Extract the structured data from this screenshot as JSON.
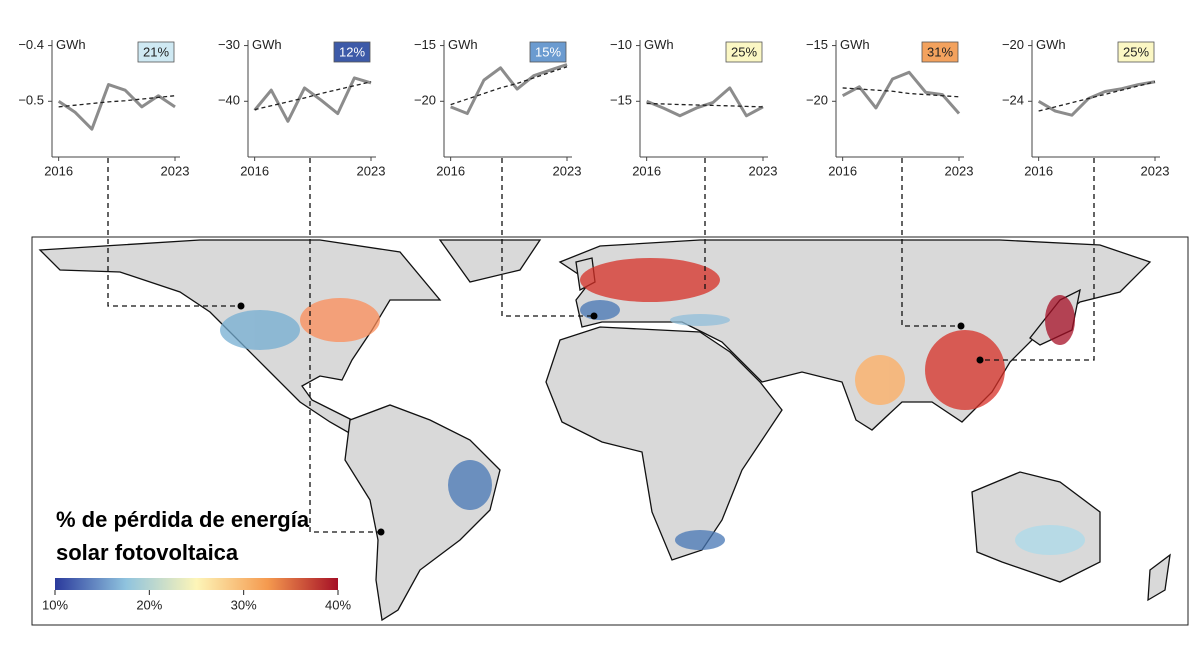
{
  "chart_data": [
    {
      "type": "line",
      "y_label": "GWh",
      "badge": "21%",
      "badge_color": "#cfe9f3",
      "badge_text_color": "#222",
      "x": [
        2016,
        2017,
        2018,
        2019,
        2020,
        2021,
        2022,
        2023
      ],
      "xlim": [
        2015.6,
        2023.3
      ],
      "xticks": [
        2016,
        2023
      ],
      "ylim": [
        -0.6,
        -0.39
      ],
      "yticks": [
        {
          "value": -0.5,
          "label": "−0.5"
        },
        {
          "value": -0.4,
          "label": "−0.4"
        }
      ],
      "series": [
        {
          "color": "#8c8c8c",
          "values": [
            -0.5,
            -0.52,
            -0.55,
            -0.47,
            -0.48,
            -0.51,
            -0.49,
            -0.51
          ]
        },
        {
          "color": "#222222",
          "dash": true,
          "values": [
            -0.51,
            -0.507,
            -0.504,
            -0.501,
            -0.499,
            -0.496,
            -0.493,
            -0.49
          ]
        }
      ]
    },
    {
      "type": "line",
      "y_label": "GWh",
      "badge": "12%",
      "badge_color": "#3d5aa8",
      "badge_text_color": "#fff",
      "x": [
        2016,
        2017,
        2018,
        2019,
        2020,
        2021,
        2022,
        2023
      ],
      "xlim": [
        2015.6,
        2023.3
      ],
      "xticks": [
        2016,
        2023
      ],
      "ylim": [
        -50,
        -29
      ],
      "yticks": [
        {
          "value": -40,
          "label": "−40"
        },
        {
          "value": -30,
          "label": "−30"
        }
      ],
      "series": [
        {
          "color": "#8c8c8c",
          "values": [
            -41.6,
            -38,
            -43.6,
            -37.6,
            -39.8,
            -42.2,
            -35.8,
            -36.7
          ]
        },
        {
          "color": "#222222",
          "dash": true,
          "values": [
            -41.5,
            -40.8,
            -40.1,
            -39.4,
            -38.6,
            -37.9,
            -37.2,
            -36.5
          ]
        }
      ]
    },
    {
      "type": "line",
      "y_label": "GWh",
      "badge": "15%",
      "badge_color": "#6b9bd0",
      "badge_text_color": "#fff",
      "x": [
        2016,
        2017,
        2018,
        2019,
        2020,
        2021,
        2022,
        2023
      ],
      "xlim": [
        2015.6,
        2023.3
      ],
      "xticks": [
        2016,
        2023
      ],
      "ylim": [
        -25,
        -14.5
      ],
      "yticks": [
        {
          "value": -20,
          "label": "−20"
        },
        {
          "value": -15,
          "label": "−15"
        }
      ],
      "series": [
        {
          "color": "#8c8c8c",
          "values": [
            -20.5,
            -21.1,
            -18.1,
            -17,
            -18.9,
            -17.7,
            -17.2,
            -16.7
          ]
        },
        {
          "color": "#222222",
          "dash": true,
          "values": [
            -20.3,
            -19.8,
            -19.3,
            -18.8,
            -18.4,
            -17.9,
            -17.4,
            -16.9
          ]
        }
      ]
    },
    {
      "type": "line",
      "y_label": "GWh",
      "badge": "25%",
      "badge_color": "#fbf7c4",
      "badge_text_color": "#222",
      "x": [
        2016,
        2017,
        2018,
        2019,
        2020,
        2021,
        2022,
        2023
      ],
      "xlim": [
        2015.6,
        2023.3
      ],
      "xticks": [
        2016,
        2023
      ],
      "ylim": [
        -20,
        -9.5
      ],
      "yticks": [
        {
          "value": -15,
          "label": "−15"
        },
        {
          "value": -10,
          "label": "−10"
        }
      ],
      "series": [
        {
          "color": "#8c8c8c",
          "values": [
            -15,
            -15.6,
            -16.3,
            -15.6,
            -15.1,
            -13.8,
            -16.3,
            -15.5
          ]
        },
        {
          "color": "#222222",
          "dash": true,
          "values": [
            -15.2,
            -15.24,
            -15.29,
            -15.33,
            -15.37,
            -15.41,
            -15.46,
            -15.5
          ]
        }
      ]
    },
    {
      "type": "line",
      "y_label": "GWh",
      "badge": "31%",
      "badge_color": "#f3a25e",
      "badge_text_color": "#222",
      "x": [
        2016,
        2017,
        2018,
        2019,
        2020,
        2021,
        2022,
        2023
      ],
      "xlim": [
        2015.6,
        2023.3
      ],
      "xticks": [
        2016,
        2023
      ],
      "ylim": [
        -25,
        -14.5
      ],
      "yticks": [
        {
          "value": -20,
          "label": "−20"
        },
        {
          "value": -15,
          "label": "−15"
        }
      ],
      "series": [
        {
          "color": "#8c8c8c",
          "values": [
            -19.5,
            -18.7,
            -20.6,
            -18,
            -17.4,
            -19.2,
            -19.4,
            -21.1
          ]
        },
        {
          "color": "#222222",
          "dash": true,
          "values": [
            -18.8,
            -18.9,
            -19,
            -19.1,
            -19.3,
            -19.4,
            -19.5,
            -19.6
          ]
        }
      ]
    },
    {
      "type": "line",
      "y_label": "GWh",
      "badge": "25%",
      "badge_color": "#fbf7c4",
      "badge_text_color": "#222",
      "x": [
        2016,
        2017,
        2018,
        2019,
        2020,
        2021,
        2022,
        2023
      ],
      "xlim": [
        2015.6,
        2023.3
      ],
      "xticks": [
        2016,
        2023
      ],
      "ylim": [
        -28,
        -19.6
      ],
      "yticks": [
        {
          "value": -24,
          "label": "−24"
        },
        {
          "value": -20,
          "label": "−20"
        }
      ],
      "series": [
        {
          "color": "#8c8c8c",
          "values": [
            -24,
            -24.7,
            -25,
            -23.8,
            -23.3,
            -23.1,
            -22.8,
            -22.6
          ]
        },
        {
          "color": "#222222",
          "dash": true,
          "values": [
            -24.7,
            -24.4,
            -24.1,
            -23.8,
            -23.5,
            -23.2,
            -22.9,
            -22.6
          ]
        }
      ]
    }
  ],
  "map": {
    "legend_title": [
      "% de pérdida de energía",
      "solar fotovoltaica"
    ],
    "colorbar": {
      "lim": [
        10,
        40
      ],
      "colors": [
        "#2b3a9c",
        "#8fc3de",
        "#fdf5b8",
        "#f59a4f",
        "#a50f26"
      ],
      "ticks": [
        {
          "value": 10,
          "label": "10%"
        },
        {
          "value": 20,
          "label": "20%"
        },
        {
          "value": 30,
          "label": "30%"
        },
        {
          "value": 40,
          "label": "40%"
        }
      ]
    }
  }
}
